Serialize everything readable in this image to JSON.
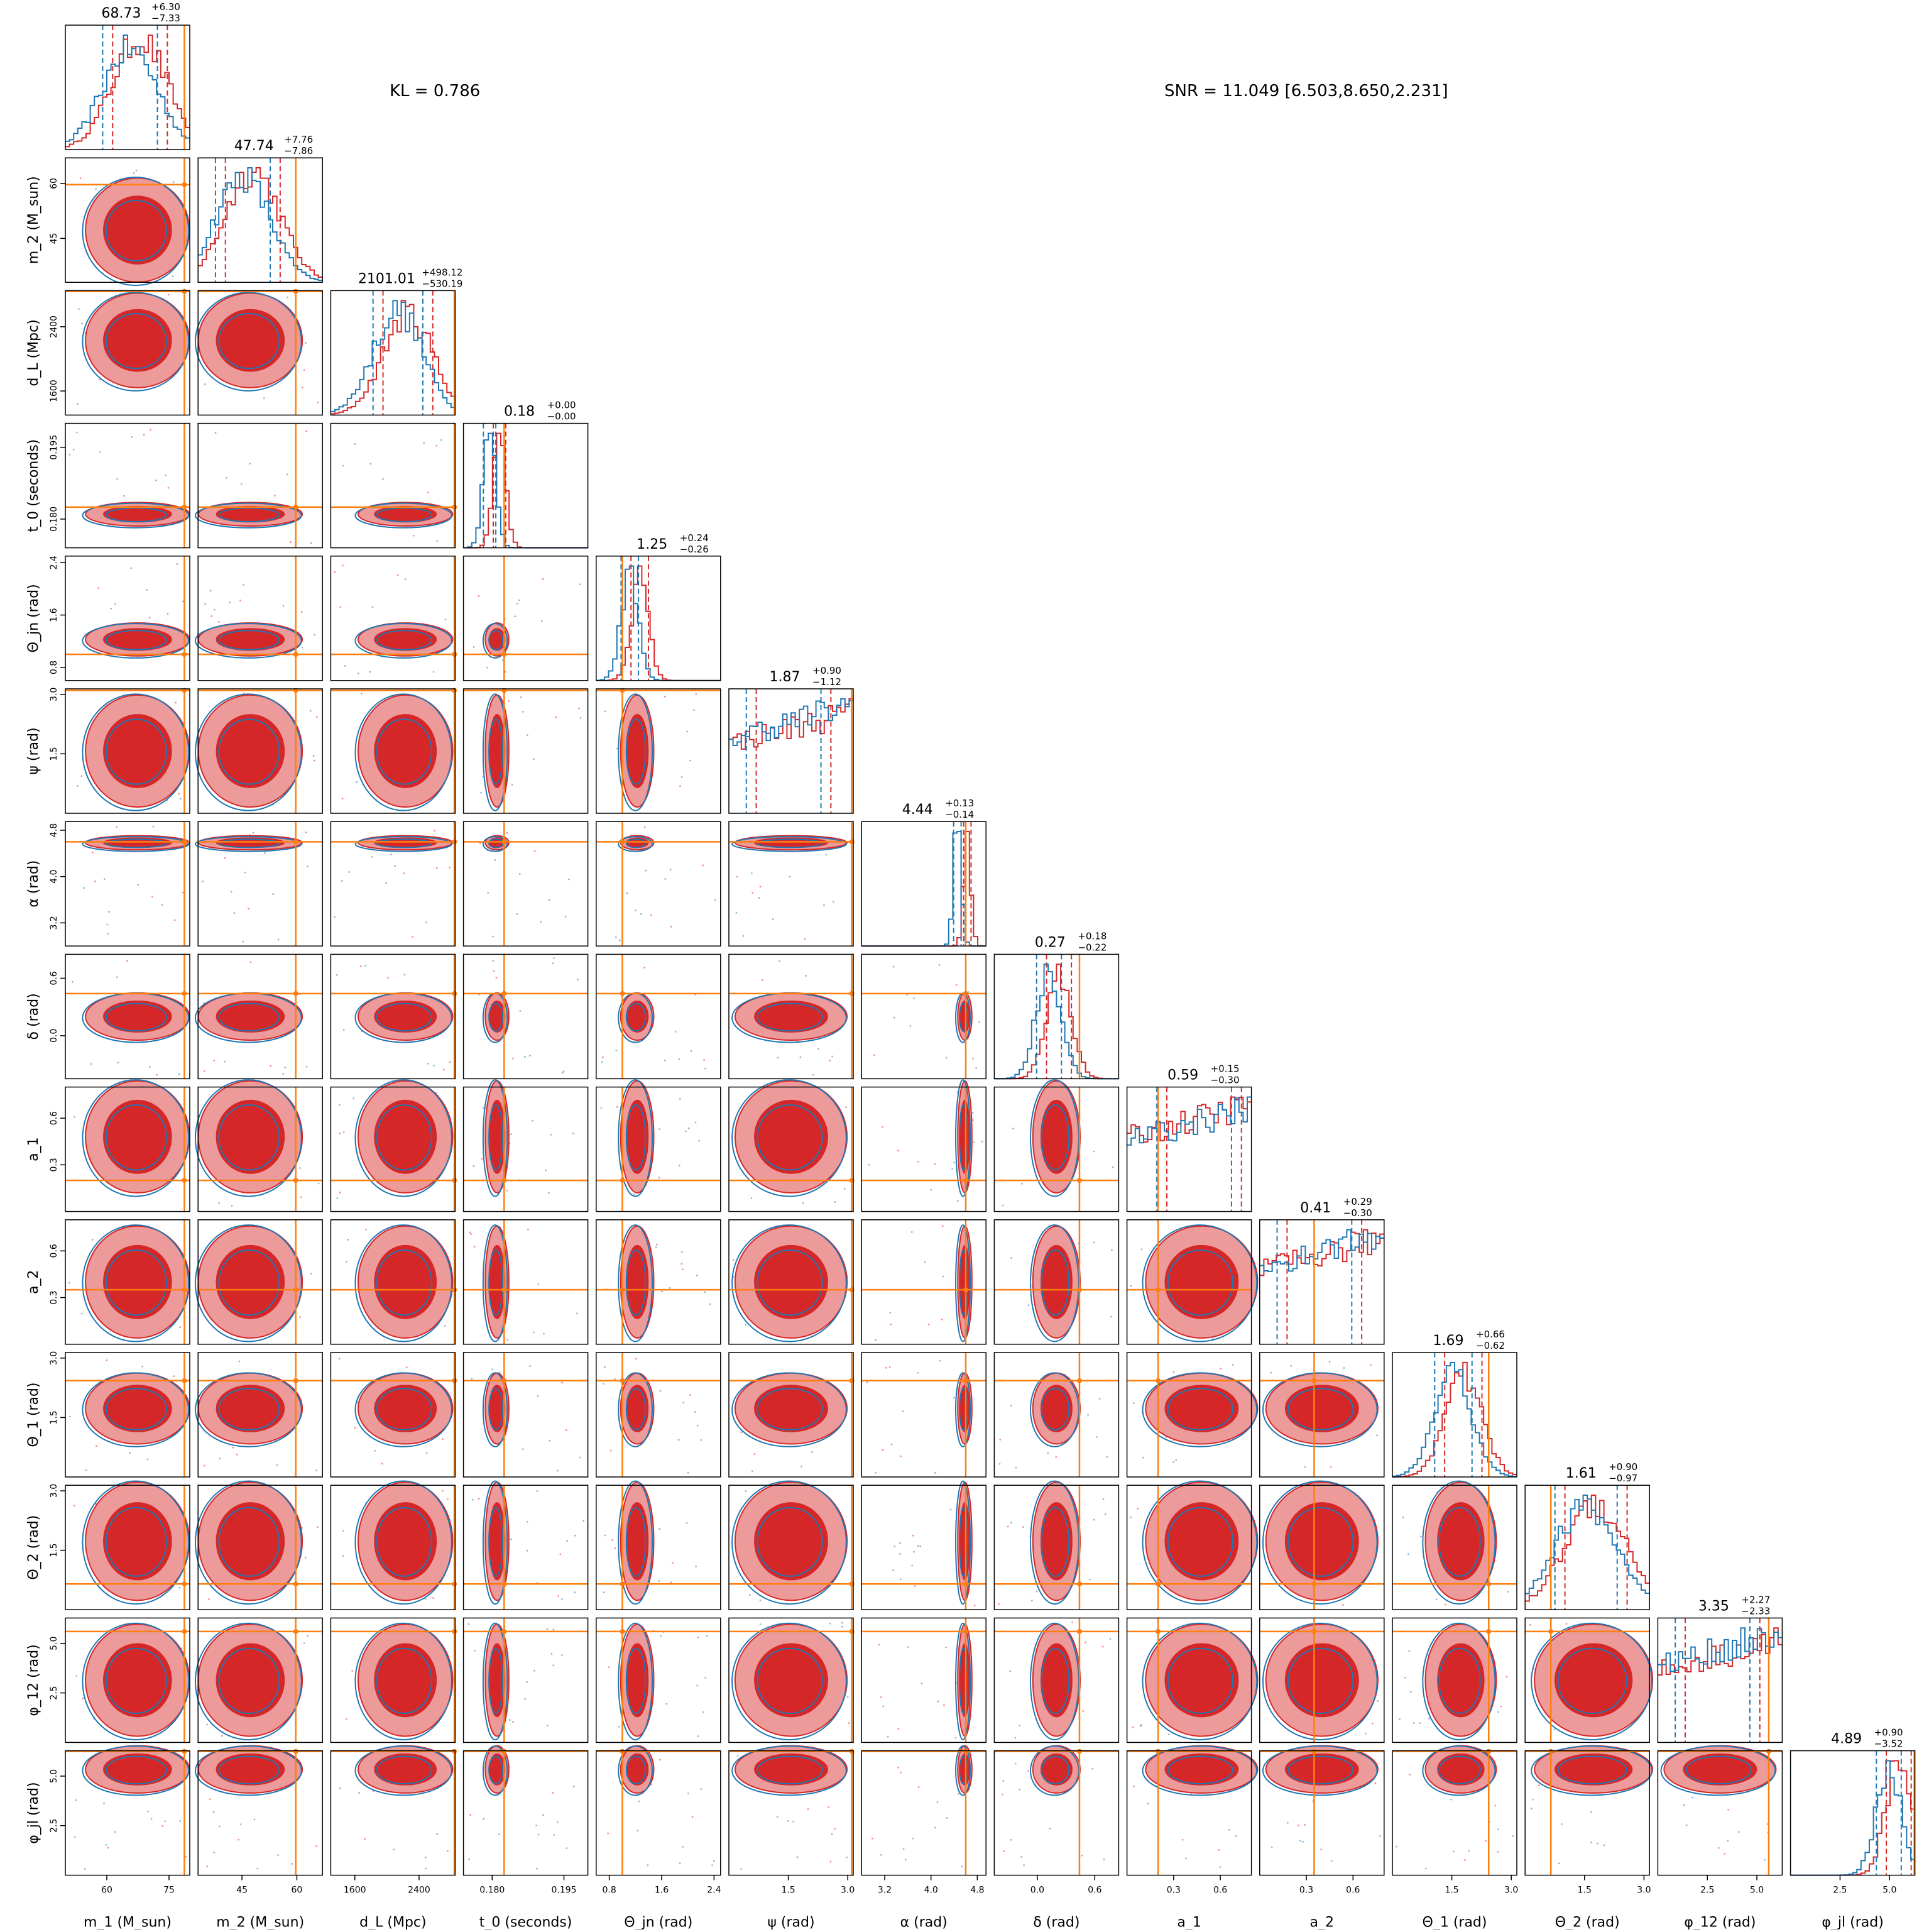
{
  "header": {
    "kl_text": "KL = 0.786",
    "snr_text": "SNR = 11.049 [6.503,8.650,2.231]"
  },
  "colors": {
    "series_a": "#d62728",
    "series_a_light": "#ec9a9a",
    "series_b": "#1f77b4",
    "truth": "#ff7f0e"
  },
  "chart_data": {
    "type": "corner",
    "grid": false,
    "series": [
      {
        "name": "",
        "color": "#d62728",
        "style": "filled contours + step histograms"
      },
      {
        "name": "",
        "color": "#1f77b4",
        "style": "line contours + step histograms"
      }
    ],
    "parameters": [
      {
        "key": "m1",
        "xlabel": "m_1 (M_sun)",
        "ylabel": "",
        "range": [
          50,
          80
        ],
        "ticks": [
          "60",
          "75"
        ],
        "truth": 78.7,
        "title_value": "68.73",
        "title_plus": "+6.30",
        "title_minus": "−7.33"
      },
      {
        "key": "m2",
        "xlabel": "m_2 (M_sun)",
        "ylabel": "m_2 (M_sun)",
        "range": [
          33,
          67
        ],
        "ticks": [
          "45",
          "60"
        ],
        "truth": 59.7,
        "title_value": "47.74",
        "title_plus": "+7.76",
        "title_minus": "−7.86"
      },
      {
        "key": "dl",
        "xlabel": "d_L (Mpc)",
        "ylabel": "d_L (Mpc)",
        "range": [
          1300,
          2850
        ],
        "ticks": [
          "1600",
          "2400"
        ],
        "truth": 2840,
        "title_value": "2101.01",
        "title_plus": "+498.12",
        "title_minus": "−530.19"
      },
      {
        "key": "t0",
        "xlabel": "t_0 (seconds)",
        "ylabel": "t_0 (seconds)",
        "range": [
          0.174,
          0.2
        ],
        "ticks": [
          "0.180",
          "0.195"
        ],
        "truth": 0.1825,
        "title_value": "0.18",
        "title_plus": "+0.00",
        "title_minus": "−0.00"
      },
      {
        "key": "theta_jn",
        "xlabel": "Θ_jn (rad)",
        "ylabel": "Θ_jn (rad)",
        "range": [
          0.6,
          2.5
        ],
        "ticks": [
          "0.8",
          "1.6",
          "2.4"
        ],
        "truth": 1.0,
        "title_value": "1.25",
        "title_plus": "+0.24",
        "title_minus": "−0.26"
      },
      {
        "key": "psi",
        "xlabel": "ψ (rad)",
        "ylabel": "ψ (rad)",
        "range": [
          0,
          3.14
        ],
        "ticks": [
          "1.5",
          "3.0"
        ],
        "truth": 3.1,
        "title_value": "1.87",
        "title_plus": "+0.90",
        "title_minus": "−1.12"
      },
      {
        "key": "alpha",
        "xlabel": "α (rad)",
        "ylabel": "α (rad)",
        "range": [
          2.8,
          4.95
        ],
        "ticks": [
          "3.2",
          "4.0",
          "4.8"
        ],
        "truth": 4.6,
        "title_value": "4.44",
        "title_plus": "+0.13",
        "title_minus": "−0.14"
      },
      {
        "key": "delta",
        "xlabel": "δ (rad)",
        "ylabel": "δ (rad)",
        "range": [
          -0.45,
          0.85
        ],
        "ticks": [
          "0.0",
          "0.6"
        ],
        "truth": 0.44,
        "title_value": "0.27",
        "title_plus": "+0.18",
        "title_minus": "−0.22"
      },
      {
        "key": "a1",
        "xlabel": "a_1",
        "ylabel": "a_1",
        "range": [
          0,
          0.8
        ],
        "ticks": [
          "0.3",
          "0.6"
        ],
        "truth": 0.2,
        "title_value": "0.59",
        "title_plus": "+0.15",
        "title_minus": "−0.30"
      },
      {
        "key": "a2",
        "xlabel": "a_2",
        "ylabel": "a_2",
        "range": [
          0,
          0.8
        ],
        "ticks": [
          "0.3",
          "0.6"
        ],
        "truth": 0.35,
        "title_value": "0.41",
        "title_plus": "+0.29",
        "title_minus": "−0.30"
      },
      {
        "key": "theta1",
        "xlabel": "Θ_1 (rad)",
        "ylabel": "Θ_1 (rad)",
        "range": [
          0,
          3.14
        ],
        "ticks": [
          "1.5",
          "3.0"
        ],
        "truth": 2.43,
        "title_value": "1.69",
        "title_plus": "+0.66",
        "title_minus": "−0.62"
      },
      {
        "key": "theta2",
        "xlabel": "Θ_2 (rad)",
        "ylabel": "Θ_2 (rad)",
        "range": [
          0,
          3.14
        ],
        "ticks": [
          "1.5",
          "3.0"
        ],
        "truth": 0.65,
        "title_value": "1.61",
        "title_plus": "+0.90",
        "title_minus": "−0.97"
      },
      {
        "key": "phi12",
        "xlabel": "φ_12 (rad)",
        "ylabel": "φ_12 (rad)",
        "range": [
          0,
          6.28
        ],
        "ticks": [
          "2.5",
          "5.0"
        ],
        "truth": 5.6,
        "title_value": "3.35",
        "title_plus": "+2.27",
        "title_minus": "−2.33"
      },
      {
        "key": "phijl",
        "xlabel": "φ_jl (rad)",
        "ylabel": "φ_jl (rad)",
        "range": [
          0,
          6.28
        ],
        "ticks": [
          "2.5",
          "5.0"
        ],
        "truth": 6.25,
        "title_value": "4.89",
        "title_plus": "+0.90",
        "title_minus": "−3.52"
      }
    ]
  }
}
